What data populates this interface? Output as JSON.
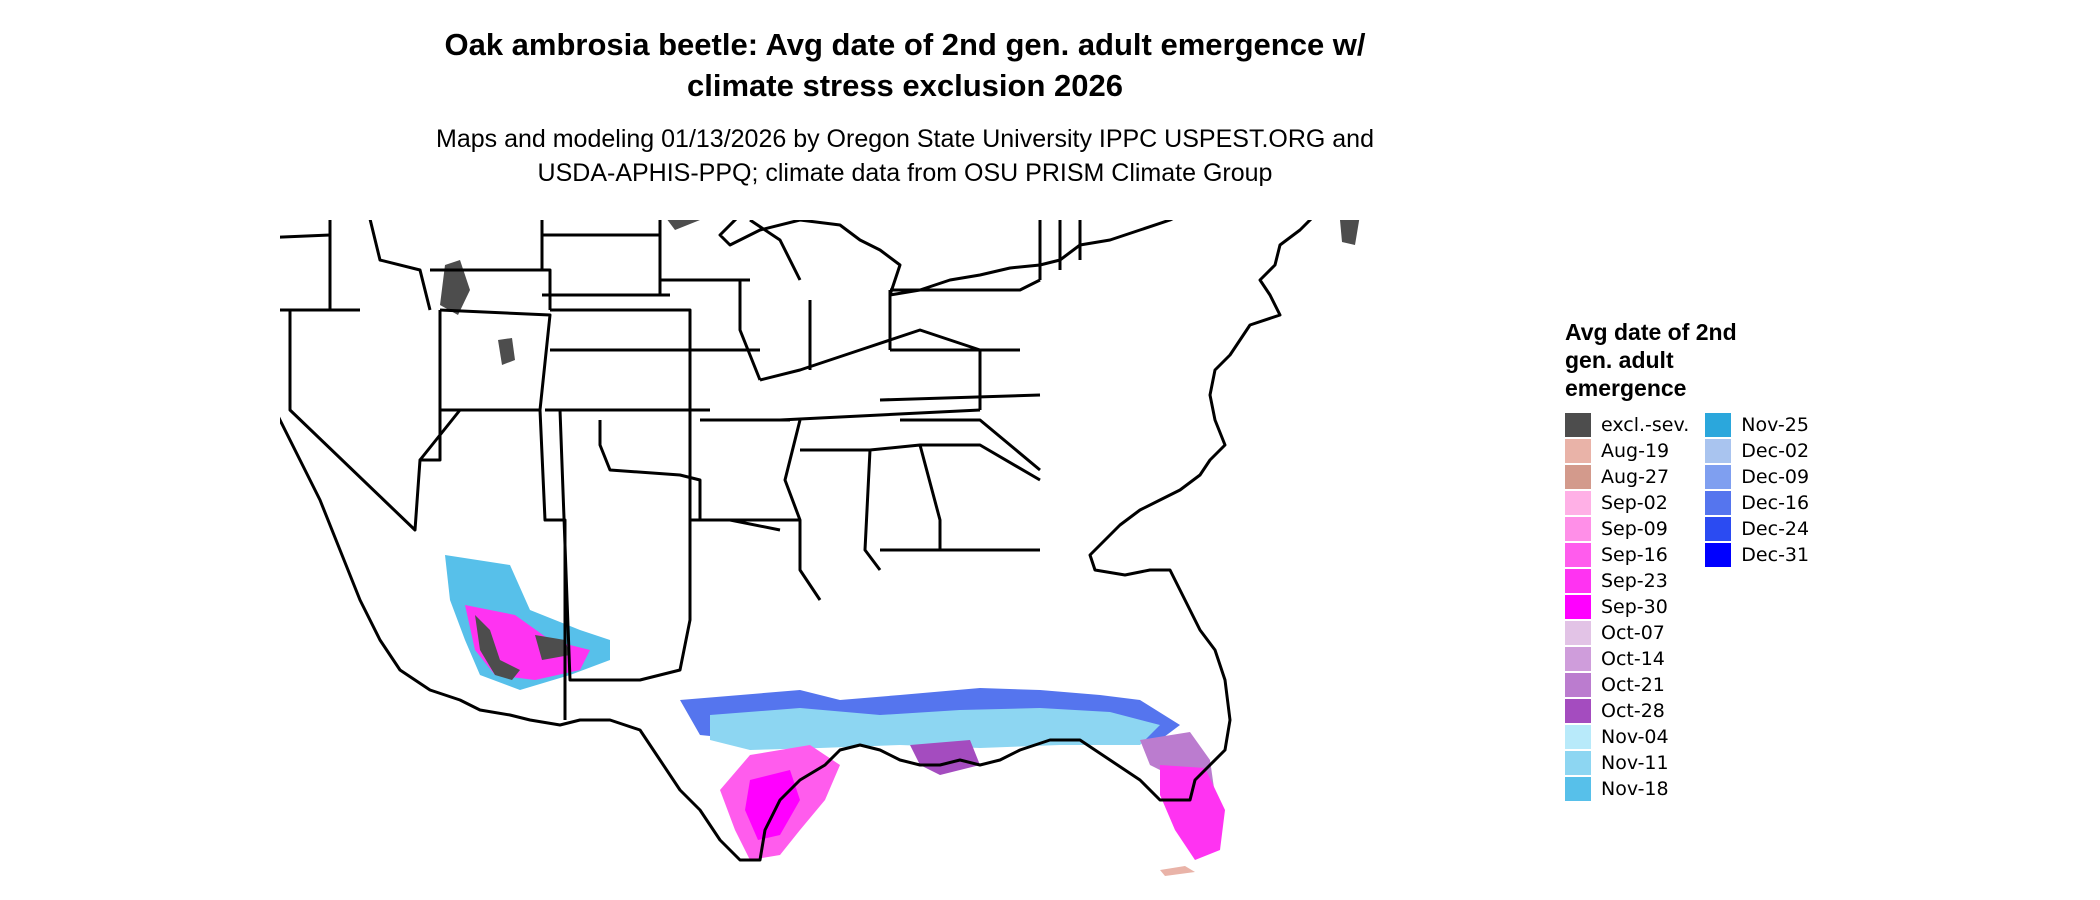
{
  "title_line1": "Oak ambrosia beetle: Avg date of 2nd gen. adult emergence w/",
  "title_line2": "climate stress exclusion 2026",
  "subtitle_line1": "Maps and modeling 01/13/2026 by Oregon State University IPPC USPEST.ORG and",
  "subtitle_line2": "USDA-APHIS-PPQ; climate data from OSU PRISM Climate Group",
  "legend": {
    "title": "Avg date of 2nd gen. adult emergence",
    "col1": [
      {
        "label": "excl.-sev.",
        "color": "#4d4d4d"
      },
      {
        "label": "Aug-19",
        "color": "#e9b3a8"
      },
      {
        "label": "Aug-27",
        "color": "#d39a8c"
      },
      {
        "label": "Sep-02",
        "color": "#ffb0e6"
      },
      {
        "label": "Sep-09",
        "color": "#ff8fe8"
      },
      {
        "label": "Sep-16",
        "color": "#ff5ced"
      },
      {
        "label": "Sep-23",
        "color": "#ff33f2"
      },
      {
        "label": "Sep-30",
        "color": "#ff00ff"
      },
      {
        "label": "Oct-07",
        "color": "#e2c3e6"
      },
      {
        "label": "Oct-14",
        "color": "#cf9ddb"
      },
      {
        "label": "Oct-21",
        "color": "#bb7ccf"
      },
      {
        "label": "Oct-28",
        "color": "#a44cbf"
      },
      {
        "label": "Nov-04",
        "color": "#b8eafa"
      },
      {
        "label": "Nov-11",
        "color": "#8dd6f2"
      },
      {
        "label": "Nov-18",
        "color": "#57c0ea"
      }
    ],
    "col2": [
      {
        "label": "Nov-25",
        "color": "#2ba7dc"
      },
      {
        "label": "Dec-02",
        "color": "#a9c4ef"
      },
      {
        "label": "Dec-09",
        "color": "#7f9ff0"
      },
      {
        "label": "Dec-16",
        "color": "#5575ee"
      },
      {
        "label": "Dec-24",
        "color": "#2b4bf2"
      },
      {
        "label": "Dec-31",
        "color": "#0000ff"
      }
    ]
  }
}
